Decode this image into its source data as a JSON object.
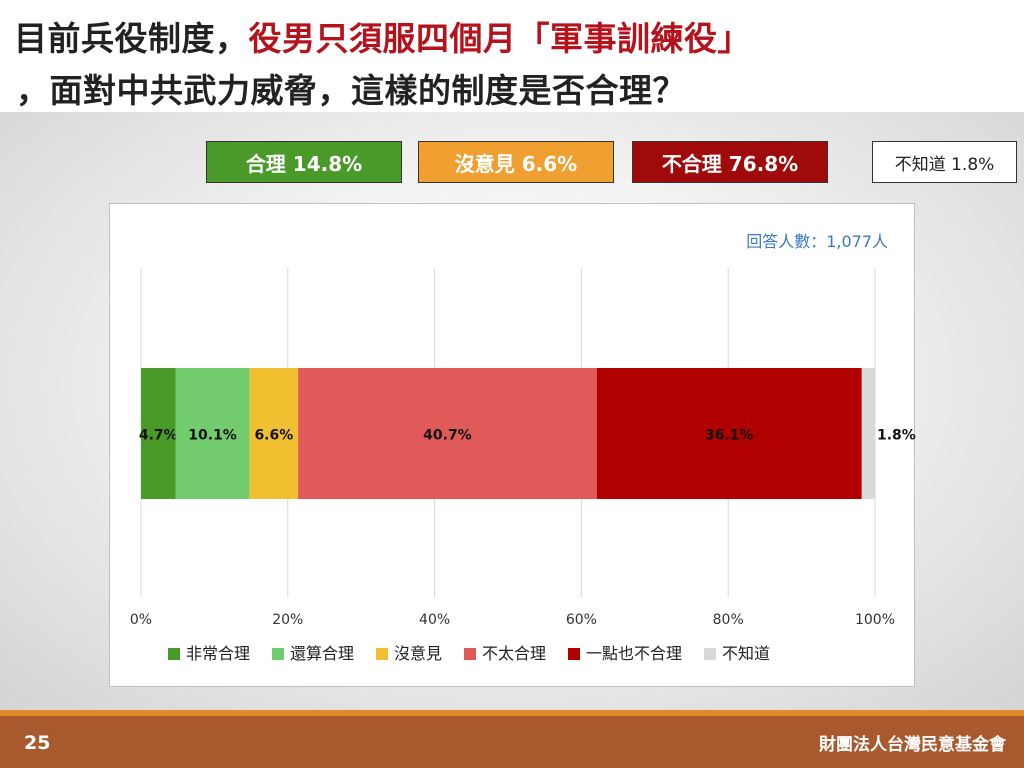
{
  "title": {
    "line1_black": "目前兵役制度，",
    "line1_red": "役男只須服四個月「軍事訓練役」",
    "line2": "，面對中共武力威脅，這樣的制度是否合理？"
  },
  "summary": {
    "reasonable": "合理 14.8%",
    "no_opinion": "沒意見 6.6%",
    "unreasonable": "不合理 76.8%",
    "dont_know": "不知道 1.8%"
  },
  "respondents_label": "回答人數：1,077人",
  "colors": {
    "very_reasonable": "#4a9a2a",
    "fairly_reasonable": "#72cc6e",
    "no_opinion": "#f0c030",
    "not_very_reasonable": "#e15a5a",
    "not_at_all_reasonable": "#b00000",
    "dont_know": "#d9d9d9",
    "title_red": "#b5121b",
    "respondents_blue": "#3a78c9",
    "footer_brown": "#a85a2e"
  },
  "chart_data": {
    "type": "bar",
    "orientation": "horizontal-stacked",
    "x_ticks": [
      "0%",
      "20%",
      "40%",
      "60%",
      "80%",
      "100%"
    ],
    "xlim": [
      0,
      100
    ],
    "grid": true,
    "legend_position": "bottom",
    "series": [
      {
        "name": "非常合理",
        "value": 4.7,
        "label": "4.7%"
      },
      {
        "name": "還算合理",
        "value": 10.1,
        "label": "10.1%"
      },
      {
        "name": "沒意見",
        "value": 6.6,
        "label": "6.6%"
      },
      {
        "name": "不太合理",
        "value": 40.7,
        "label": "40.7%"
      },
      {
        "name": "一點也不合理",
        "value": 36.1,
        "label": "36.1%"
      },
      {
        "name": "不知道",
        "value": 1.8,
        "label": "1.8%"
      }
    ]
  },
  "footer": {
    "page_number": "25",
    "organization": "財團法人台灣民意基金會"
  }
}
